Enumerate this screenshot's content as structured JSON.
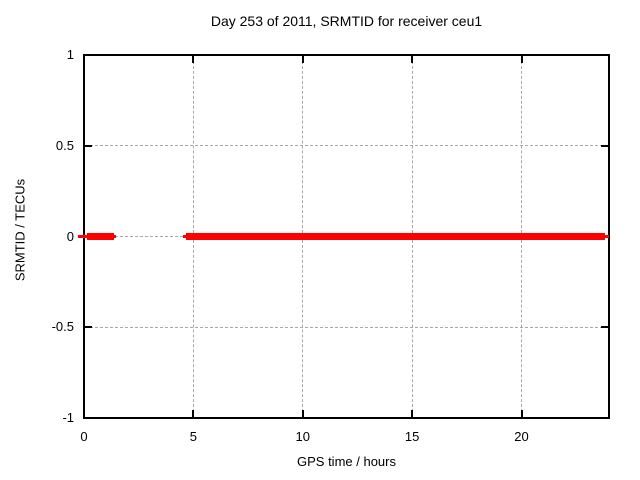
{
  "chart_data": {
    "type": "line",
    "title": "Day 253 of 2011, SRMTID for receiver ceu1",
    "xlabel": "GPS time / hours",
    "ylabel": "SRMTID / TECUs",
    "xlim": [
      0,
      24
    ],
    "ylim": [
      -1,
      1
    ],
    "xtick_values": [
      0,
      5,
      10,
      15,
      20
    ],
    "xtick_labels": [
      "0",
      "5",
      "10",
      "15",
      "20"
    ],
    "ytick_values": [
      1,
      0.5,
      0,
      -0.5,
      -1
    ],
    "ytick_labels": [
      "1",
      "0.5",
      "0",
      "-0.5",
      "-1"
    ],
    "grid": true,
    "legend_position": "none",
    "colors": {
      "background": "#ffffff",
      "axis": "#000000",
      "grid": "#a8a8a8",
      "text": "#000000"
    },
    "series": [
      {
        "name": "SRMTID",
        "color": "#ff0000",
        "y_value": 0,
        "segments": [
          {
            "x_start": -0.27,
            "x_end": 1.46,
            "core_start": 0.14,
            "core_end": 1.37
          },
          {
            "x_start": 4.53,
            "x_end": 24.0,
            "core_start": 4.66,
            "core_end": 23.82
          }
        ]
      }
    ]
  }
}
